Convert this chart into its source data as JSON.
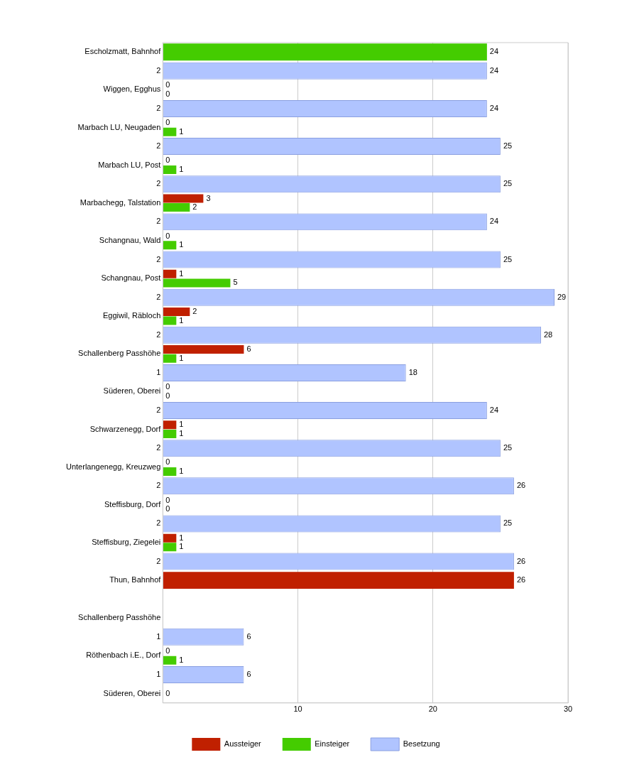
{
  "chart_data": {
    "type": "bar",
    "orientation": "horizontal",
    "categories": [
      "Escholzmatt, Bahnhof",
      "2",
      "Wiggen, Egghus",
      "2",
      "Marbach LU, Neugaden",
      "2",
      "Marbach LU, Post",
      "2",
      "Marbachegg, Talstation",
      "2",
      "Schangnau, Wald",
      "2",
      "Schangnau, Post",
      "2",
      "Eggiwil, Räbloch",
      "2",
      "Schallenberg Passhöhe",
      "1",
      "Süderen, Oberei",
      "2",
      "Schwarzenegg, Dorf",
      "2",
      "Unterlangenegg, Kreuzweg",
      "2",
      "Steffisburg, Dorf",
      "2",
      "Steffisburg, Ziegelei",
      "2",
      "Thun, Bahnhof",
      null,
      "Schallenberg Passhöhe",
      "1",
      "Röthenbach i.E., Dorf",
      "1",
      "Süderen, Oberei"
    ],
    "series": [
      {
        "name": "Besetzung",
        "color": "#b0c4ff",
        "values": [
          null,
          24,
          null,
          24,
          null,
          25,
          null,
          25,
          null,
          24,
          null,
          25,
          null,
          29,
          null,
          28,
          null,
          18,
          null,
          24,
          null,
          25,
          null,
          26,
          null,
          25,
          null,
          26,
          null,
          null,
          null,
          6,
          null,
          6,
          null
        ]
      },
      {
        "name": "Einsteiger",
        "color": "#44cc00",
        "values": [
          24,
          null,
          0,
          null,
          1,
          null,
          1,
          null,
          2,
          null,
          1,
          null,
          5,
          null,
          1,
          null,
          1,
          null,
          0,
          null,
          1,
          null,
          1,
          null,
          0,
          null,
          1,
          null,
          null,
          null,
          null,
          null,
          1,
          null,
          null
        ]
      },
      {
        "name": "Aussteiger",
        "color": "#c02000",
        "values": [
          null,
          null,
          0,
          null,
          0,
          null,
          0,
          null,
          3,
          null,
          0,
          null,
          1,
          null,
          2,
          null,
          6,
          null,
          0,
          null,
          1,
          null,
          0,
          null,
          0,
          null,
          1,
          null,
          26,
          null,
          null,
          null,
          0,
          null,
          0
        ]
      }
    ],
    "xlim": [
      0,
      30
    ],
    "xticks": [
      {
        "value": 0,
        "label": null
      },
      10,
      20,
      30
    ],
    "grid": "x",
    "legend": "bottom",
    "data_labels": true
  }
}
